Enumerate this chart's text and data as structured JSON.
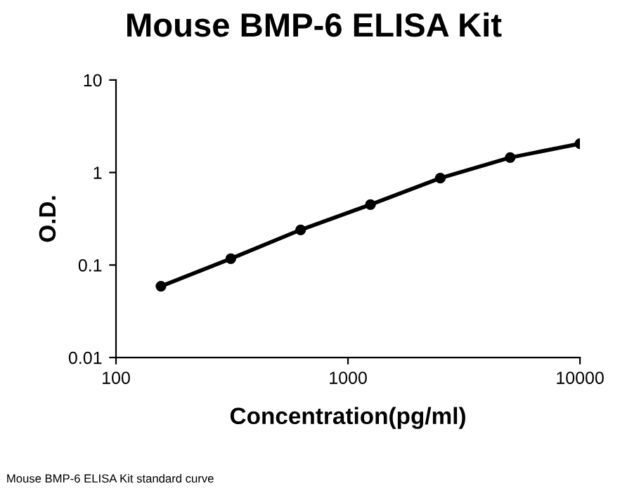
{
  "chart_data": {
    "type": "line",
    "title": "Mouse BMP-6 ELISA Kit",
    "xlabel": "Concentration(pg/ml)",
    "ylabel": "O.D.",
    "annotations": [
      "Mouse BMP-6 ELISA Kit standard curve"
    ],
    "x": [
      156.25,
      312.5,
      625,
      1250,
      2500,
      5000,
      10000
    ],
    "series": [
      {
        "color": "#000000",
        "values": [
          0.059,
          0.117,
          0.24,
          0.45,
          0.87,
          1.45,
          2.05
        ]
      }
    ],
    "log": "xy",
    "xlim": [
      100,
      10000
    ],
    "ylim": [
      0.01,
      10
    ],
    "xticks": [
      100,
      1000,
      10000
    ],
    "yticks": [
      0.01,
      0.1,
      1,
      10
    ],
    "marker": "circle",
    "line_style": "solid",
    "grid": false,
    "legend": false
  }
}
